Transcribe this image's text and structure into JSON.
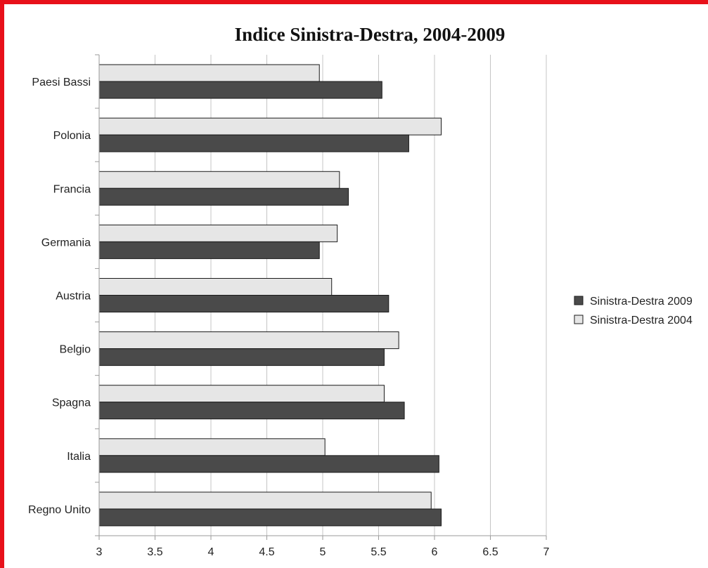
{
  "chart_data": {
    "type": "bar",
    "orientation": "horizontal",
    "title": "Indice Sinistra-Destra, 2004-2009",
    "xlabel": "",
    "ylabel": "",
    "categories": [
      "Paesi Bassi",
      "Polonia",
      "Francia",
      "Germania",
      "Austria",
      "Belgio",
      "Spagna",
      "Italia",
      "Regno Unito"
    ],
    "series": [
      {
        "name": "Sinistra-Destra 2004",
        "color": "#e6e6e6",
        "values": [
          4.97,
          6.06,
          5.15,
          5.13,
          5.08,
          5.68,
          5.55,
          5.02,
          5.97
        ]
      },
      {
        "name": "Sinistra-Destra 2009",
        "color": "#4a4a4a",
        "values": [
          5.53,
          5.77,
          5.23,
          4.97,
          5.59,
          5.55,
          5.73,
          6.04,
          6.06
        ]
      }
    ],
    "xlim": [
      3,
      7
    ],
    "xticks": [
      "3",
      "3.5",
      "4",
      "4.5",
      "5",
      "5.5",
      "6",
      "6.5",
      "7"
    ],
    "xtick_values": [
      3,
      3.5,
      4,
      4.5,
      5,
      5.5,
      6,
      6.5,
      7
    ],
    "grid": true,
    "legend_position": "right",
    "legend_order": [
      "Sinistra-Destra 2009",
      "Sinistra-Destra 2004"
    ]
  }
}
